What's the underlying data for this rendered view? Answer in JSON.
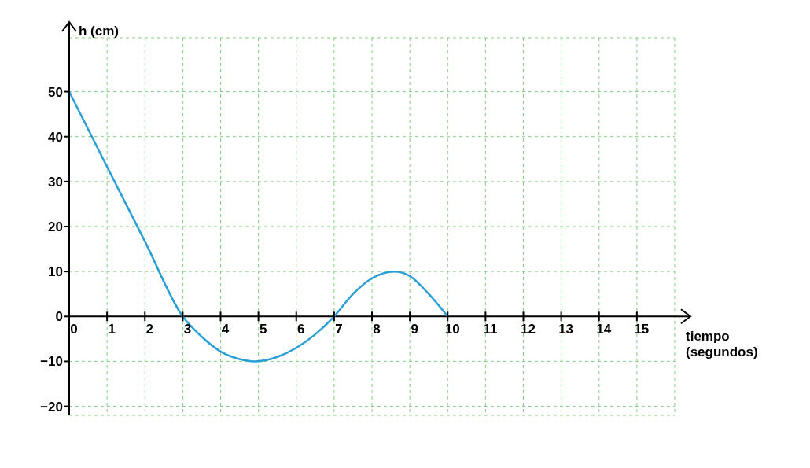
{
  "chart_data": {
    "type": "line",
    "xlabel": "tiempo (segundos)",
    "ylabel": "h (cm)",
    "xlim": [
      0,
      16
    ],
    "ylim": [
      -22,
      62
    ],
    "xticks": [
      0,
      1,
      2,
      3,
      4,
      5,
      6,
      7,
      8,
      9,
      10,
      11,
      12,
      13,
      14,
      15
    ],
    "yticks": [
      -20,
      -10,
      0,
      10,
      20,
      30,
      40,
      50
    ],
    "grid": true,
    "marker": "none",
    "line_style": "solid",
    "series": [
      {
        "color": "#2a9fd6",
        "x": [
          0,
          1,
          2,
          3,
          3.5,
          4,
          4.5,
          4.9,
          5.5,
          6,
          6.5,
          7,
          7.5,
          8,
          8.6,
          9,
          9.5,
          10
        ],
        "values": [
          50,
          33.3,
          16.7,
          0,
          -4.5,
          -7.8,
          -9.5,
          -10,
          -9,
          -7,
          -4,
          0,
          5,
          8.5,
          10,
          9,
          5,
          0
        ]
      }
    ]
  }
}
